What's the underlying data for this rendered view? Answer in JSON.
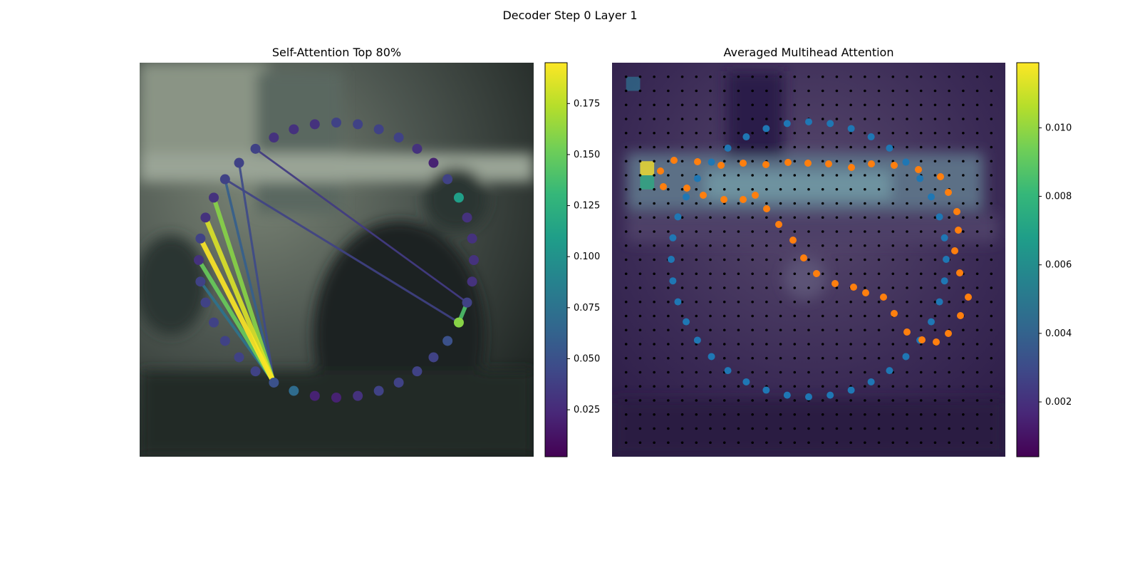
{
  "suptitle": "Decoder Step 0 Layer 1",
  "colormap": [
    "#440154",
    "#482878",
    "#3e4a89",
    "#31688e",
    "#26828e",
    "#1f9e89",
    "#35b779",
    "#6ece58",
    "#b5de2b",
    "#fde725"
  ],
  "left_panel": {
    "title": "Self-Attention Top 80%",
    "background_colors": {
      "light": "#6f7a6c",
      "mid": "#3b4440",
      "dark": "#1c2220"
    },
    "colorbar": {
      "range": [
        0.002,
        0.195
      ],
      "ticks": [
        0.025,
        0.05,
        0.075,
        0.1,
        0.125,
        0.15,
        0.175
      ],
      "tick_labels": [
        "0.025",
        "0.050",
        "0.075",
        "0.100",
        "0.125",
        "0.150",
        "0.175"
      ]
    }
  },
  "right_panel": {
    "title": "Averaged Multihead Attention",
    "grid": {
      "rows": 27,
      "cols": 27
    },
    "point_colors": {
      "blue": "#1f77b4",
      "orange": "#ff7f0e",
      "grid_dot": "#000000"
    },
    "colorbar": {
      "range": [
        0.0004,
        0.0119
      ],
      "ticks": [
        0.002,
        0.004,
        0.006,
        0.008,
        0.01
      ],
      "tick_labels": [
        "0.002",
        "0.004",
        "0.006",
        "0.008",
        "0.010"
      ]
    }
  },
  "chart_data": [
    {
      "type": "scatter",
      "title": "Self-Attention Top 80%",
      "description_free": true,
      "num_points": 40,
      "point_values": [
        0.04,
        0.04,
        0.04,
        0.04,
        0.03,
        0.02,
        0.04,
        0.11,
        0.03,
        0.03,
        0.03,
        0.03,
        0.04,
        0.16,
        0.05,
        0.04,
        0.04,
        0.04,
        0.04,
        0.03,
        0.02,
        0.02,
        0.07,
        0.05,
        0.04,
        0.04,
        0.04,
        0.04,
        0.04,
        0.04,
        0.03,
        0.04,
        0.03,
        0.03,
        0.04,
        0.04,
        0.04,
        0.03,
        0.03,
        0.03
      ],
      "query_point_index": 23,
      "edges": [
        {
          "from": 23,
          "to": 31,
          "weight": 0.195
        },
        {
          "from": 23,
          "to": 32,
          "weight": 0.185
        },
        {
          "from": 23,
          "to": 33,
          "weight": 0.16
        },
        {
          "from": 23,
          "to": 30,
          "weight": 0.15
        },
        {
          "from": 23,
          "to": 29,
          "weight": 0.075
        },
        {
          "from": 23,
          "to": 34,
          "weight": 0.06
        },
        {
          "from": 23,
          "to": 35,
          "weight": 0.045
        },
        {
          "from": 12,
          "to": 13,
          "weight": 0.14
        },
        {
          "from": 13,
          "to": 34,
          "weight": 0.04
        },
        {
          "from": 12,
          "to": 36,
          "weight": 0.03
        }
      ]
    },
    {
      "type": "heatmap",
      "title": "Averaged Multihead Attention",
      "hot_cells": [
        {
          "row": 7,
          "col": 2,
          "value": 0.0119
        },
        {
          "row": 8,
          "col": 2,
          "value": 0.0075
        },
        {
          "row": 1,
          "col": 1,
          "value": 0.0045
        }
      ],
      "typical_value": 0.0015
    }
  ]
}
